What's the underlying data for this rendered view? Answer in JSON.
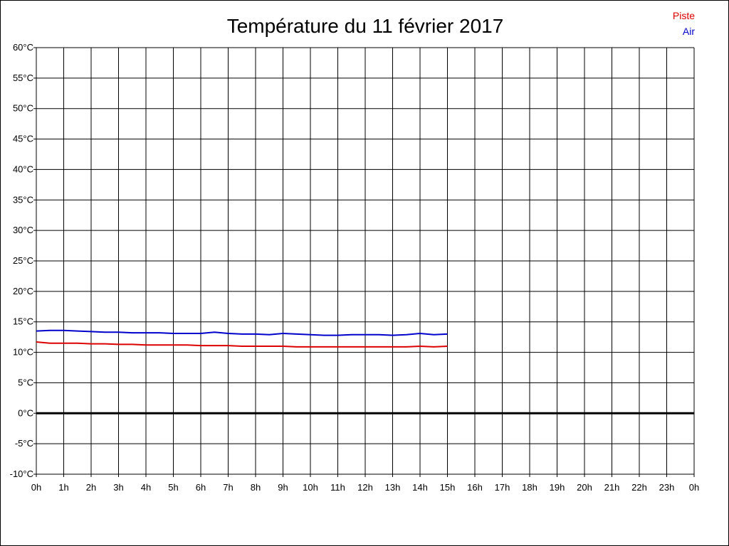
{
  "chart_data": {
    "type": "line",
    "title": "Température du 11 février 2017",
    "x_tick_labels": [
      "0h",
      "1h",
      "2h",
      "3h",
      "4h",
      "5h",
      "6h",
      "7h",
      "8h",
      "9h",
      "10h",
      "11h",
      "12h",
      "13h",
      "14h",
      "15h",
      "16h",
      "17h",
      "18h",
      "19h",
      "20h",
      "21h",
      "22h",
      "23h",
      "0h"
    ],
    "y_tick_labels": [
      "60°C",
      "55°C",
      "50°C",
      "45°C",
      "40°C",
      "35°C",
      "30°C",
      "25°C",
      "20°C",
      "15°C",
      "10°C",
      "5°C",
      "0°C",
      "-5°C",
      "-10°C"
    ],
    "xlim": [
      0,
      24
    ],
    "ylim": [
      -10,
      60
    ],
    "y_step": 5,
    "grid": true,
    "zero_line": true,
    "legend_position": "top-right",
    "series": [
      {
        "name": "Piste",
        "color": "#dd0000",
        "x": [
          0,
          0.5,
          1,
          1.5,
          2,
          2.5,
          3,
          3.5,
          4,
          4.5,
          5,
          5.5,
          6,
          6.5,
          7,
          7.5,
          8,
          8.5,
          9,
          9.5,
          10,
          10.5,
          11,
          11.5,
          12,
          12.5,
          13,
          13.5,
          14,
          14.5,
          15
        ],
        "y": [
          11.7,
          11.5,
          11.5,
          11.5,
          11.4,
          11.4,
          11.3,
          11.3,
          11.2,
          11.2,
          11.2,
          11.2,
          11.1,
          11.1,
          11.1,
          11.0,
          11.0,
          11.0,
          11.0,
          10.9,
          10.9,
          10.9,
          10.9,
          10.9,
          10.9,
          10.9,
          10.9,
          10.9,
          11.0,
          10.9,
          11.0
        ]
      },
      {
        "name": "Air",
        "color": "#0000cc",
        "x": [
          0,
          0.5,
          1,
          1.5,
          2,
          2.5,
          3,
          3.5,
          4,
          4.5,
          5,
          5.5,
          6,
          6.5,
          7,
          7.5,
          8,
          8.5,
          9,
          9.5,
          10,
          10.5,
          11,
          11.5,
          12,
          12.5,
          13,
          13.5,
          14,
          14.5,
          15
        ],
        "y": [
          13.5,
          13.6,
          13.6,
          13.5,
          13.4,
          13.3,
          13.3,
          13.2,
          13.2,
          13.2,
          13.1,
          13.1,
          13.1,
          13.3,
          13.1,
          13.0,
          13.0,
          12.9,
          13.1,
          13.0,
          12.9,
          12.8,
          12.8,
          12.9,
          12.9,
          12.9,
          12.8,
          12.9,
          13.1,
          12.9,
          13.0
        ]
      }
    ]
  }
}
